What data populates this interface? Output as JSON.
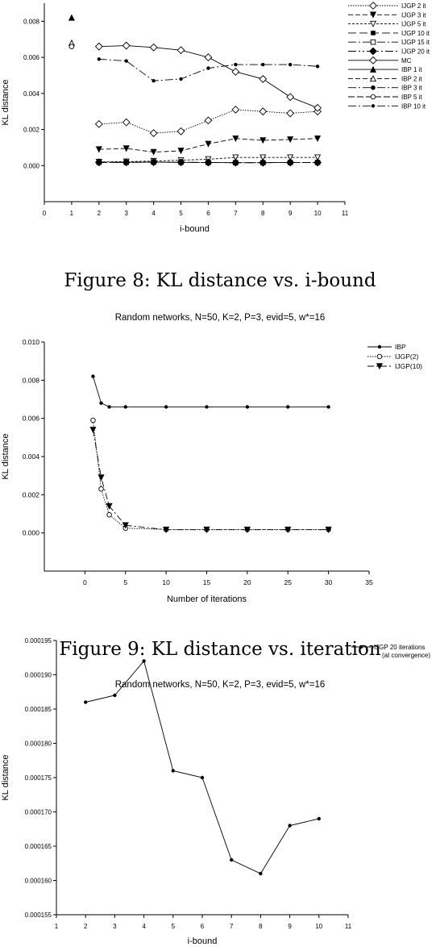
{
  "chart_data": [
    {
      "type": "line",
      "title": "",
      "xlabel": "i-bound",
      "ylabel": "KL distance",
      "xlim": [
        0,
        11
      ],
      "ylim": [
        -0.002,
        0.009
      ],
      "xticks": [
        "0",
        "1",
        "2",
        "3",
        "4",
        "5",
        "6",
        "7",
        "8",
        "9",
        "10",
        "11"
      ],
      "yticks": [
        "0.000",
        "0.002",
        "0.004",
        "0.006",
        "0.008"
      ],
      "legend_position": "top-right",
      "series": [
        {
          "name": "IJGP 2 it",
          "x": [
            2,
            3,
            4,
            5,
            6,
            7,
            8,
            9,
            10
          ],
          "values": [
            0.0023,
            0.0024,
            0.0018,
            0.0019,
            0.0025,
            0.0031,
            0.003,
            0.0029,
            0.003
          ]
        },
        {
          "name": "IJGP 3 it",
          "x": [
            2,
            3,
            4,
            5,
            6,
            7,
            8,
            9,
            10
          ],
          "values": [
            0.0009,
            0.00095,
            0.00075,
            0.00082,
            0.0012,
            0.0015,
            0.0014,
            0.00145,
            0.0015
          ]
        },
        {
          "name": "IJGP 5 it",
          "x": [
            2,
            3,
            4,
            5,
            6,
            7,
            8,
            9,
            10
          ],
          "values": [
            0.0002,
            0.00022,
            0.00025,
            0.0003,
            0.00035,
            0.00045,
            0.00045,
            0.00045,
            0.00045
          ]
        },
        {
          "name": "IJGP 10 it",
          "x": [
            2,
            3,
            4,
            5,
            6,
            7,
            8,
            9,
            10
          ],
          "values": [
            0.00018,
            0.00018,
            0.00019,
            0.00018,
            0.00017,
            0.00016,
            0.00016,
            0.00017,
            0.00017
          ]
        },
        {
          "name": "IJGP 15 it",
          "x": [
            2,
            3,
            4,
            5,
            6,
            7,
            8,
            9,
            10
          ],
          "values": [
            0.00018,
            0.00018,
            0.00019,
            0.00018,
            0.00017,
            0.00016,
            0.00016,
            0.00017,
            0.00017
          ]
        },
        {
          "name": "IJGP 20 it",
          "x": [
            2,
            3,
            4,
            5,
            6,
            7,
            8,
            9,
            10
          ],
          "values": [
            0.00018,
            0.00018,
            0.00019,
            0.00018,
            0.00017,
            0.00016,
            0.00016,
            0.00017,
            0.00017
          ]
        },
        {
          "name": "MC",
          "x": [
            2,
            3,
            4,
            5,
            6,
            7,
            8,
            9,
            10
          ],
          "values": [
            0.0066,
            0.00665,
            0.00655,
            0.0064,
            0.006,
            0.0052,
            0.0048,
            0.0038,
            0.0032
          ]
        },
        {
          "name": "IBP 1 it",
          "x": [
            1
          ],
          "values": [
            0.0082
          ]
        },
        {
          "name": "IBP 2 it",
          "x": [
            1
          ],
          "values": [
            0.0068
          ]
        },
        {
          "name": "IBP 3 it",
          "x": [
            1
          ],
          "values": [
            0.0066
          ]
        },
        {
          "name": "IBP 5 it",
          "x": [
            1
          ],
          "values": [
            0.0066
          ]
        },
        {
          "name": "IBP 10 it",
          "x": [
            2,
            3,
            4,
            5,
            6,
            7,
            8,
            9,
            10
          ],
          "values": [
            0.0059,
            0.0058,
            0.0047,
            0.0048,
            0.0054,
            0.0056,
            0.0056,
            0.0056,
            0.0055
          ]
        }
      ]
    },
    {
      "type": "line",
      "title": "Random networks, N=50, K=2, P=3, evid=5, w*=16",
      "xlabel": "Number of iterations",
      "ylabel": "KL distance",
      "xlim": [
        -5,
        35
      ],
      "ylim": [
        -0.002,
        0.01
      ],
      "xticks": [
        "0",
        "5",
        "10",
        "15",
        "20",
        "25",
        "30",
        "35"
      ],
      "yticks": [
        "0.000",
        "0.002",
        "0.004",
        "0.006",
        "0.008",
        "0.010"
      ],
      "legend_position": "top-right",
      "series": [
        {
          "name": "IBP",
          "x": [
            1,
            2,
            3,
            5,
            10,
            15,
            20,
            25,
            30
          ],
          "values": [
            0.0082,
            0.0068,
            0.0066,
            0.0066,
            0.0066,
            0.0066,
            0.0066,
            0.0066,
            0.0066
          ]
        },
        {
          "name": "IJGP(2)",
          "x": [
            1,
            2,
            3,
            5,
            10,
            15,
            20,
            25,
            30
          ],
          "values": [
            0.0059,
            0.0023,
            0.00095,
            0.00025,
            0.00018,
            0.00018,
            0.00018,
            0.00018,
            0.00018
          ]
        },
        {
          "name": "IJGP(10)",
          "x": [
            1,
            2,
            3,
            5,
            10,
            15,
            20,
            25,
            30
          ],
          "values": [
            0.0054,
            0.0029,
            0.0014,
            0.0004,
            0.00017,
            0.00017,
            0.00017,
            0.00017,
            0.00017
          ]
        }
      ]
    },
    {
      "type": "line",
      "title": "Random networks, N=50, K=2, P=3, evid=5, w*=16",
      "xlabel": "i-bound",
      "ylabel": "KL distance",
      "xlim": [
        1,
        11
      ],
      "ylim": [
        0.000155,
        0.000195
      ],
      "xticks": [
        "1",
        "2",
        "3",
        "4",
        "5",
        "6",
        "7",
        "8",
        "9",
        "10",
        "11"
      ],
      "yticks": [
        "0.000155",
        "0.000160",
        "0.000165",
        "0.000170",
        "0.000175",
        "0.000180",
        "0.000185",
        "0.000190",
        "0.000195"
      ],
      "legend_position": "top-right",
      "series": [
        {
          "name": "IJGP 20 iterations",
          "name_line2": "(at convergence)",
          "x": [
            2,
            3,
            4,
            5,
            6,
            7,
            8,
            9,
            10
          ],
          "values": [
            0.000186,
            0.000187,
            0.000192,
            0.000176,
            0.000175,
            0.000163,
            0.000161,
            0.000168,
            0.000169
          ]
        }
      ]
    }
  ],
  "captions": {
    "fig8": "Figure 8: KL distance vs. i-bound",
    "fig9": "Figure 9: KL distance vs. iteration"
  }
}
